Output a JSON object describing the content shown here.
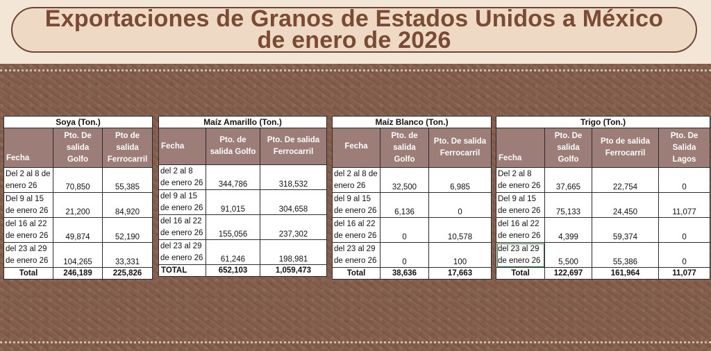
{
  "title": {
    "line1": "Exportaciones de Granos de Estados Unidos a México",
    "line2": "de enero de 2026"
  },
  "tables": {
    "soya": {
      "caption": "Soya  (Ton.)",
      "headers": [
        "Fecha",
        "Pto. De salida Golfo",
        "Pto de salida Ferrocarril"
      ],
      "rows": [
        {
          "fecha": "Del  2 al 8 de enero 26",
          "golfo": "70,850",
          "ferrocarril": "55,385"
        },
        {
          "fecha": "Del  9 al 15 de enero 26",
          "golfo": "21,200",
          "ferrocarril": "84,920"
        },
        {
          "fecha": "del 16 al 22 de enero 26",
          "golfo": "49,874",
          "ferrocarril": "52,190"
        },
        {
          "fecha": "del 23 al 29 de enero  26",
          "golfo": "104,265",
          "ferrocarril": "33,331"
        }
      ],
      "total": {
        "label": "Total",
        "golfo": "246,189",
        "ferrocarril": "225,826"
      }
    },
    "maiz_amarillo": {
      "caption": "Maíz Amarillo (Ton.)",
      "headers": [
        "Fecha",
        "Pto. de salida Golfo",
        "Pto. De salida Ferrocarril"
      ],
      "rows": [
        {
          "fecha": "del 2 al 8 de enero 26",
          "golfo": "344,786",
          "ferrocarril": "318,532"
        },
        {
          "fecha": "del 9 al 15 de enero 26",
          "golfo": "91,015",
          "ferrocarril": "304,658"
        },
        {
          "fecha": "del 16 al 22 de enero 26",
          "golfo": "155,056",
          "ferrocarril": "237,302"
        },
        {
          "fecha": "del 23 al 29 de enero  26",
          "golfo": "61,246",
          "ferrocarril": "198,981"
        }
      ],
      "total": {
        "label": "TOTAL",
        "golfo": "652,103",
        "ferrocarril": "1,059,473"
      }
    },
    "maiz_blanco": {
      "caption": "Maíz Blanco (Ton.)",
      "headers": [
        "Fecha",
        "Pto. de salida Golfo",
        "Pto. De salida Ferrocarril"
      ],
      "rows": [
        {
          "fecha": "del 2 al 8 de enero 26",
          "golfo": "32,500",
          "ferrocarril": "6,985"
        },
        {
          "fecha": "del 9 al 15 de enero 26",
          "golfo": "6,136",
          "ferrocarril": "0"
        },
        {
          "fecha": "del 16 al 22 de enero 26",
          "golfo": "0",
          "ferrocarril": "10,578"
        },
        {
          "fecha": "del 23 al 29 de enero  26",
          "golfo": "0",
          "ferrocarril": "100"
        }
      ],
      "total": {
        "label": "Total",
        "golfo": "38,636",
        "ferrocarril": "17,663"
      }
    },
    "trigo": {
      "caption": "Trigo  (Ton.)",
      "headers": [
        "Fecha",
        "Pto. De salida Golfo",
        "Pto de salida Ferrocarril",
        "Pto. De Salida Lagos"
      ],
      "rows": [
        {
          "fecha": "Del  2 al 8 de enero 26",
          "golfo": "37,665",
          "ferrocarril": "22,754",
          "lagos": "0"
        },
        {
          "fecha": "Del  9 al 15 de enero 26",
          "golfo": "75,133",
          "ferrocarril": "24,450",
          "lagos": "11,077"
        },
        {
          "fecha": "del 16 al 22 de enero 26",
          "golfo": "4,399",
          "ferrocarril": "59,374",
          "lagos": "0"
        },
        {
          "fecha": "del 23 al 29 de enero  26",
          "golfo": "5,500",
          "ferrocarril": "55,386",
          "lagos": "0"
        }
      ],
      "total": {
        "label": "Total",
        "golfo": "122,697",
        "ferrocarril": "161,964",
        "lagos": "11,077"
      }
    }
  },
  "colors": {
    "header_bg": "#9c7d77",
    "title_text": "#7a4a33",
    "background": "#80604f"
  }
}
